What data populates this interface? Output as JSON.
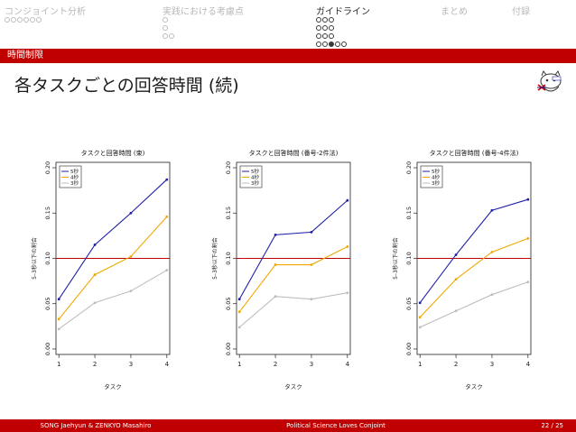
{
  "nav": {
    "sections": [
      {
        "label": "コンジョイント分析",
        "rows": [
          6
        ],
        "filled": [],
        "active": false
      },
      {
        "label": "実践における考慮点",
        "rows": [
          1,
          1,
          2
        ],
        "filled": [],
        "active": false
      },
      {
        "label": "ガイドライン",
        "rows": [
          3,
          3,
          3,
          5
        ],
        "filled": [
          [
            3,
            2
          ]
        ],
        "active": true
      },
      {
        "label": "まとめ",
        "rows": [],
        "filled": [],
        "active": false
      },
      {
        "label": "付録",
        "rows": [],
        "filled": [],
        "active": false
      }
    ]
  },
  "section_bar": {
    "label": "時間制限"
  },
  "slide": {
    "title": "各タスクごとの回答時間 (続)"
  },
  "logo": {
    "name": "cat-logo-icon"
  },
  "colors": {
    "accent": "#c00000",
    "s5": "#1f1fa8",
    "s4": "#f0a800",
    "s3": "#bdbdbd",
    "ref": "#c00000"
  },
  "chart_data": [
    {
      "type": "line",
      "title": "タスクと回答時間 (束)",
      "xlabel": "タスク",
      "ylabel": "5–3秒以下の割合",
      "x": [
        1,
        2,
        3,
        4
      ],
      "ylim": [
        0.0,
        0.2
      ],
      "yticks": [
        "0.00",
        "0.05",
        "0.10",
        "0.15",
        "0.20"
      ],
      "reference_line": 0.1,
      "legend_position": "top-left",
      "series": [
        {
          "name": "5秒",
          "values": [
            0.055,
            0.115,
            0.15,
            0.187
          ]
        },
        {
          "name": "4秒",
          "values": [
            0.033,
            0.082,
            0.102,
            0.146
          ]
        },
        {
          "name": "3秒",
          "values": [
            0.022,
            0.051,
            0.064,
            0.087
          ]
        }
      ]
    },
    {
      "type": "line",
      "title": "タスクと回答時間 (番号-2件法)",
      "xlabel": "タスク",
      "ylabel": "5–3秒以下の割合",
      "x": [
        1,
        2,
        3,
        4
      ],
      "ylim": [
        0.0,
        0.2
      ],
      "yticks": [
        "0.00",
        "0.05",
        "0.10",
        "0.15",
        "0.20"
      ],
      "reference_line": 0.1,
      "legend_position": "top-left",
      "series": [
        {
          "name": "5秒",
          "values": [
            0.055,
            0.126,
            0.129,
            0.164
          ]
        },
        {
          "name": "4秒",
          "values": [
            0.041,
            0.093,
            0.093,
            0.113
          ]
        },
        {
          "name": "3秒",
          "values": [
            0.024,
            0.058,
            0.055,
            0.062
          ]
        }
      ]
    },
    {
      "type": "line",
      "title": "タスクと回答時間 (番号-4件法)",
      "xlabel": "タスク",
      "ylabel": "5–3秒以下の割合",
      "x": [
        1,
        2,
        3,
        4
      ],
      "ylim": [
        0.0,
        0.2
      ],
      "yticks": [
        "0.00",
        "0.05",
        "0.10",
        "0.15",
        "0.20"
      ],
      "reference_line": 0.1,
      "legend_position": "top-left",
      "series": [
        {
          "name": "5秒",
          "values": [
            0.051,
            0.104,
            0.153,
            0.165
          ]
        },
        {
          "name": "4秒",
          "values": [
            0.035,
            0.077,
            0.107,
            0.122
          ]
        },
        {
          "name": "3秒",
          "values": [
            0.024,
            0.042,
            0.06,
            0.074
          ]
        }
      ]
    }
  ],
  "footer": {
    "authors": "SONG Jaehyun & ZENKYO Masahiro",
    "talk": "Political Science Loves Conjoint",
    "page": "22 / 25"
  }
}
